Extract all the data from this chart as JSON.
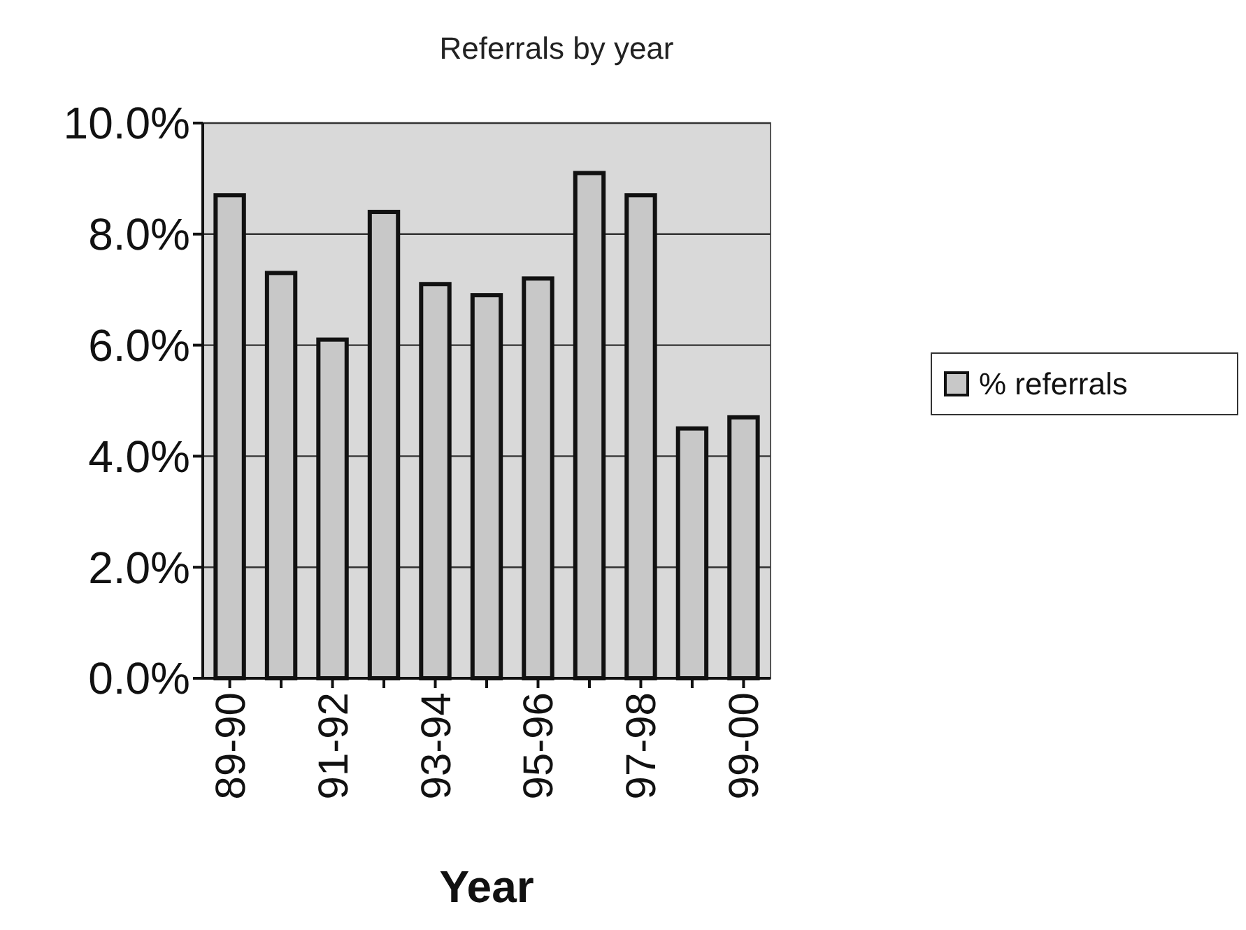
{
  "chart_data": {
    "type": "bar",
    "title": "Referrals by year",
    "xlabel": "Year",
    "categories": [
      "89-90",
      null,
      "91-92",
      null,
      "93-94",
      null,
      "95-96",
      null,
      "97-98",
      null,
      "99-00"
    ],
    "series": [
      {
        "name": "% referrals",
        "color": "#c8c8c8",
        "values": [
          8.7,
          7.3,
          6.1,
          8.4,
          7.1,
          6.9,
          7.2,
          9.1,
          8.7,
          4.5,
          4.7
        ]
      }
    ],
    "ylim": [
      0,
      10
    ],
    "yticks": [
      {
        "value": 0,
        "label": "0.0%"
      },
      {
        "value": 2,
        "label": "2.0%"
      },
      {
        "value": 4,
        "label": "4.0%"
      },
      {
        "value": 6,
        "label": "6.0%"
      },
      {
        "value": 8,
        "label": "8.0%"
      },
      {
        "value": 10,
        "label": "10.0%"
      }
    ],
    "grid": "y",
    "legend": "right"
  }
}
